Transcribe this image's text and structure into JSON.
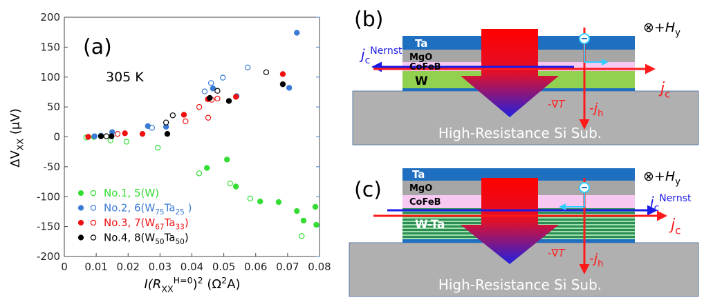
{
  "chart_data": {
    "type": "scatter",
    "panel_label": "(a)",
    "annotation": "305 K",
    "ylabel": [
      {
        "t": "ΔV"
      },
      {
        "t": "XX",
        "s": "sub"
      },
      {
        "t": " (μV)"
      }
    ],
    "xlabel": [
      {
        "t": "I",
        "s": "it"
      },
      {
        "t": "(R",
        "s": "it"
      },
      {
        "t": "XX",
        "s": "sub"
      },
      {
        "t": "H=0",
        "s": "sup"
      },
      {
        "t": ")"
      },
      {
        "t": "2",
        "s": "sup"
      },
      {
        "t": " (Ω"
      },
      {
        "t": "2",
        "s": "sup"
      },
      {
        "t": "A)"
      }
    ],
    "xlim": [
      0,
      0.08
    ],
    "xticks": [
      0,
      0.01,
      0.02,
      0.03,
      0.04,
      0.05,
      0.06,
      0.07,
      0.08
    ],
    "ylim": [
      -200,
      200
    ],
    "yticks": [
      -200,
      -150,
      -100,
      -50,
      0,
      50,
      100,
      150,
      200
    ],
    "series": [
      {
        "name": [
          {
            "t": "No.1, 5(W)"
          }
        ],
        "color": "#33dd33",
        "filled": {
          "x": [
            0.0093,
            0.0447,
            0.051,
            0.0538,
            0.0614,
            0.0672,
            0.0729,
            0.075,
            0.0787,
            0.079
          ],
          "values": [
            0,
            -52,
            -38,
            -83,
            -108,
            -109,
            -124,
            -140,
            -117,
            -147
          ]
        },
        "open": {
          "x": [
            0.0069,
            0.0145,
            0.0195,
            0.0293,
            0.0423,
            0.052,
            0.0583,
            0.0744
          ],
          "values": [
            -1,
            -6,
            -8,
            -18,
            -61,
            -78,
            -103,
            -166
          ]
        }
      },
      {
        "name": [
          {
            "t": "No.2, 6(W"
          },
          {
            "t": "75",
            "s": "sub"
          },
          {
            "t": "Ta"
          },
          {
            "t": "25",
            "s": "sub"
          },
          {
            "t": " )"
          }
        ],
        "color": "#3a7bd5",
        "filled": {
          "x": [
            0.0095,
            0.015,
            0.0262,
            0.0319,
            0.0466,
            0.054,
            0.0729,
            0.0705
          ],
          "values": [
            1,
            8,
            18,
            17,
            81,
            68,
            174,
            82
          ]
        },
        "open": {
          "x": [
            0.0115,
            0.0275,
            0.044,
            0.046,
            0.0497,
            0.0575
          ],
          "values": [
            2,
            15,
            76,
            90,
            99,
            116
          ]
        }
      },
      {
        "name": [
          {
            "t": "No.3, 7(W"
          },
          {
            "t": "67",
            "s": "sub"
          },
          {
            "t": "Ta"
          },
          {
            "t": "33",
            "s": "sub"
          },
          {
            "t": ")"
          }
        ],
        "color": "#ee1111",
        "filled": {
          "x": [
            0.0075,
            0.019,
            0.0245,
            0.0375,
            0.045,
            0.0538,
            0.0685
          ],
          "values": [
            0,
            6,
            5,
            37,
            63,
            67,
            105
          ]
        },
        "open": {
          "x": [
            0.0167,
            0.038,
            0.0423,
            0.0451,
            0.0462,
            0.048
          ],
          "values": [
            5,
            26,
            50,
            32,
            62,
            64
          ]
        }
      },
      {
        "name": [
          {
            "t": "No.4, 8(W"
          },
          {
            "t": "50",
            "s": "sub"
          },
          {
            "t": "Ta"
          },
          {
            "t": "50",
            "s": "sub"
          },
          {
            "t": ")"
          }
        ],
        "color": "#000000",
        "filled": {
          "x": [
            0.0115,
            0.0148,
            0.0323,
            0.0456,
            0.0516,
            0.0685
          ],
          "values": [
            1,
            1,
            5,
            65,
            60,
            88
          ]
        },
        "open": {
          "x": [
            0.0132,
            0.0319,
            0.034,
            0.048,
            0.0633
          ],
          "values": [
            1,
            24,
            36,
            77,
            108
          ]
        }
      }
    ]
  },
  "diagrams": {
    "b": {
      "label": "(b)",
      "ta": "Ta",
      "mgo": "MgO",
      "cofeb": "CoFeB",
      "metal": "W",
      "substrate": "High-Resistance Si Sub.",
      "field": [
        {
          "t": "⊗+"
        },
        {
          "t": "H",
          "s": "it"
        },
        {
          "t": "y",
          "s": "sub"
        }
      ],
      "nernst": [
        {
          "t": "j",
          "s": "it"
        },
        {
          "t": "c",
          "s": "sub"
        },
        {
          "t": "Nernst",
          "s": "sup"
        }
      ],
      "jc": [
        {
          "t": "j",
          "s": "it"
        },
        {
          "t": "c",
          "s": "sub"
        }
      ],
      "gradT": [
        {
          "t": "-∇"
        },
        {
          "t": "T",
          "s": "it"
        }
      ],
      "jh": [
        {
          "t": "-"
        },
        {
          "t": "j",
          "s": "it"
        },
        {
          "t": "h",
          "s": "sub"
        }
      ]
    },
    "c": {
      "label": "(c)",
      "ta": "Ta",
      "mgo": "MgO",
      "cofeb": "CoFeB",
      "metal": "W-Ta",
      "substrate": "High-Resistance Si Sub.",
      "field": [
        {
          "t": "⊗+"
        },
        {
          "t": "H",
          "s": "it"
        },
        {
          "t": "y",
          "s": "sub"
        }
      ],
      "nernst": [
        {
          "t": "j",
          "s": "it"
        },
        {
          "t": "c",
          "s": "sub"
        },
        {
          "t": "Nernst",
          "s": "sup"
        }
      ],
      "jc": [
        {
          "t": "j",
          "s": "it"
        },
        {
          "t": "c",
          "s": "sub"
        }
      ],
      "gradT": [
        {
          "t": "-∇"
        },
        {
          "t": "T",
          "s": "it"
        }
      ],
      "jh": [
        {
          "t": "-"
        },
        {
          "t": "j",
          "s": "it"
        },
        {
          "t": "h",
          "s": "sub"
        }
      ]
    }
  }
}
